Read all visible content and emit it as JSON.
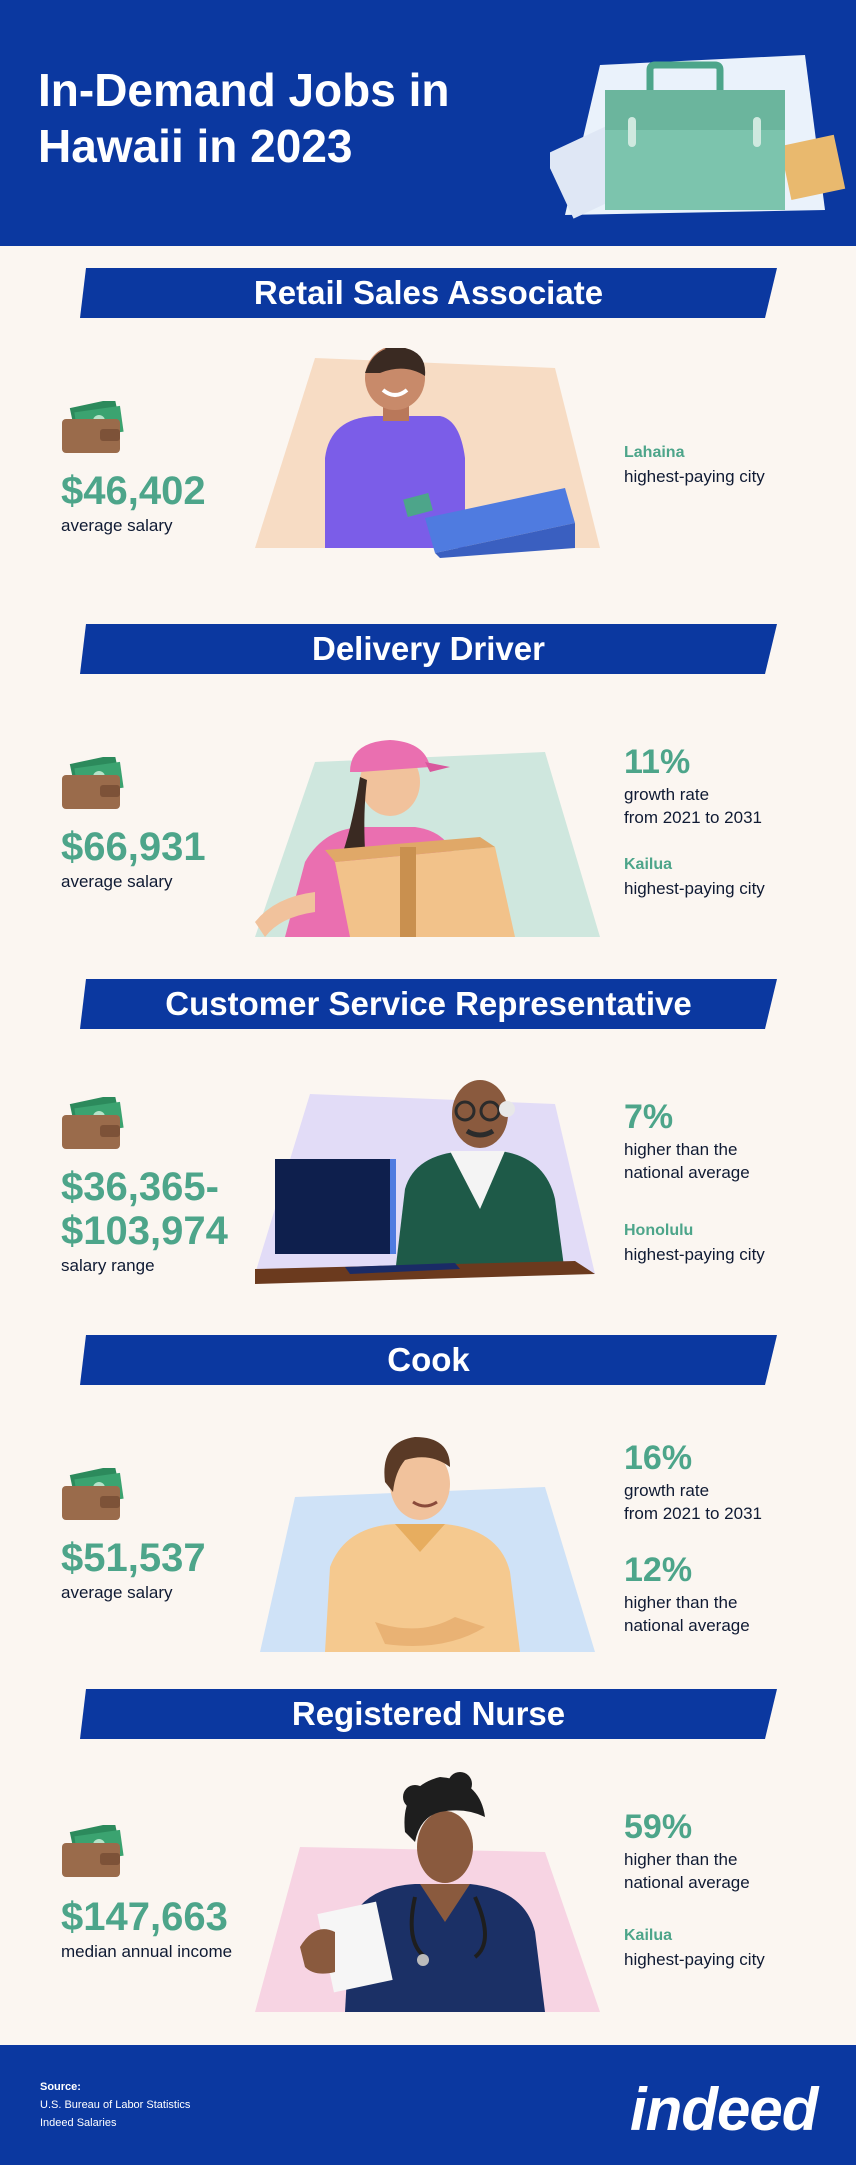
{
  "header": {
    "title": "In-Demand Jobs in Hawaii in 2023"
  },
  "colors": {
    "brand_blue": "#0b38a0",
    "accent_green": "#4da58a",
    "background": "#fbf6f1"
  },
  "jobs": [
    {
      "title": "Retail Sales Associate",
      "salary": "$46,402",
      "salary_caption": "average  salary",
      "city": "Lahaina",
      "city_caption": "highest-paying city"
    },
    {
      "title": "Delivery Driver",
      "salary": "$66,931",
      "salary_caption": "average  salary",
      "stat1_value": "11%",
      "stat1_caption": "growth rate\nfrom 2021 to 2031",
      "city": "Kailua",
      "city_caption": "highest-paying city"
    },
    {
      "title": "Customer Service Representative",
      "salary_line1": "$36,365-",
      "salary_line2": "$103,974",
      "salary_caption": "salary range",
      "stat1_value": "7%",
      "stat1_caption": "higher than the\nnational average",
      "city": "Honolulu",
      "city_caption": "highest-paying city"
    },
    {
      "title": "Cook",
      "salary": "$51,537",
      "salary_caption": "average  salary",
      "stat1_value": "16%",
      "stat1_caption": "growth rate\nfrom 2021 to 2031",
      "stat2_value": "12%",
      "stat2_caption": "higher than the\nnational average"
    },
    {
      "title": "Registered Nurse",
      "salary": "$147,663",
      "salary_caption": "median annual income",
      "stat1_value": "59%",
      "stat1_caption": "higher than the\nnational average",
      "city": "Kailua",
      "city_caption": "highest-paying city"
    }
  ],
  "footer": {
    "source_label": "Source:",
    "source_1": "U.S. Bureau of Labor Statistics",
    "source_2": "Indeed Salaries",
    "logo": "indeed"
  }
}
